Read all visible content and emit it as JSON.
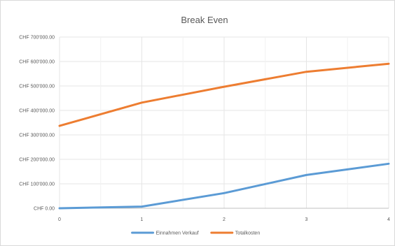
{
  "chart_data": {
    "type": "line",
    "title": "Break Even",
    "xlabel": "",
    "ylabel": "",
    "x": [
      0,
      1,
      2,
      3,
      4
    ],
    "xlim": [
      0,
      4
    ],
    "ylim": [
      0,
      700000
    ],
    "y_ticks": [
      0,
      100000,
      200000,
      300000,
      400000,
      500000,
      600000,
      700000
    ],
    "y_tick_labels": [
      "CHF 0.00",
      "CHF 100'000.00",
      "CHF 200'000.00",
      "CHF 300'000.00",
      "CHF 400'000.00",
      "CHF 500'000.00",
      "CHF 600'000.00",
      "CHF 700'000.00"
    ],
    "x_tick_labels": [
      "0",
      "1",
      "2",
      "3",
      "4"
    ],
    "grid": true,
    "legend_position": "bottom",
    "series": [
      {
        "name": "Einnahmen Verkauf",
        "color": "#5b9bd5",
        "values": [
          0,
          7000,
          62000,
          136000,
          182000
        ]
      },
      {
        "name": "Totalkosten",
        "color": "#ed7d31",
        "values": [
          337000,
          432000,
          497000,
          558000,
          591000
        ]
      }
    ]
  }
}
